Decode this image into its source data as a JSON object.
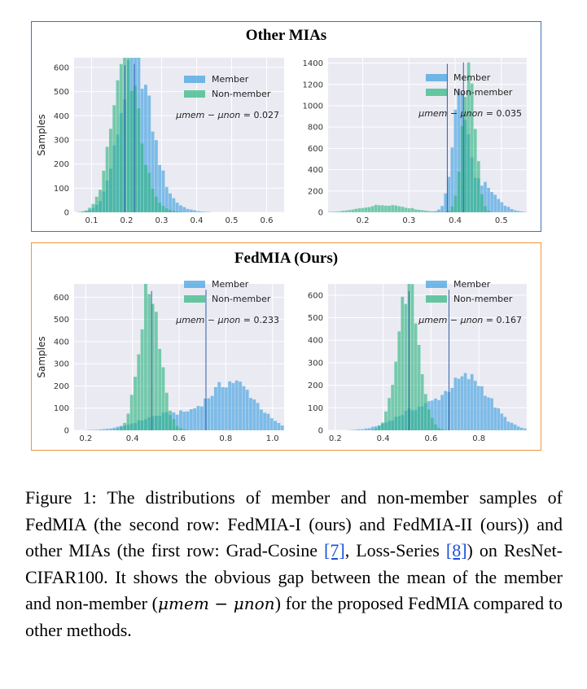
{
  "colors": {
    "member": "#3a9ee0",
    "nonmember": "#2bb57f",
    "mean_line": "#2f5fa8",
    "plot_bg": "#eaeaf2",
    "grid": "#ffffff",
    "top_border": "#3b74c4",
    "bottom_border": "#f0953c"
  },
  "panels": [
    {
      "title": "Other MIAs"
    },
    {
      "title": "FedMIA (Ours)"
    }
  ],
  "chart_data": [
    {
      "type": "bar",
      "ylabel": "Samples",
      "legend": [
        "Member",
        "Non-member"
      ],
      "annotation_prefix": "μmem − μnon",
      "annotation_value": "0.027",
      "xlim": [
        0.05,
        0.65
      ],
      "ylim": [
        0,
        640
      ],
      "xticks": [
        0.1,
        0.2,
        0.3,
        0.4,
        0.5,
        0.6
      ],
      "xtick_labels": [
        "0.1",
        "0.2",
        "0.3",
        "0.4",
        "0.5",
        "0.6"
      ],
      "yticks": [
        0,
        100,
        200,
        300,
        400,
        500,
        600
      ],
      "member": {
        "mean": 0.222,
        "components": [
          {
            "mu": 0.225,
            "sd": 0.045,
            "peak": 620
          },
          {
            "mu": 0.31,
            "sd": 0.05,
            "peak": 30
          }
        ]
      },
      "nonmember": {
        "mean": 0.195,
        "components": [
          {
            "mu": 0.197,
            "sd": 0.038,
            "peak": 625
          },
          {
            "mu": 0.27,
            "sd": 0.04,
            "peak": 20
          }
        ]
      },
      "bins": [
        0.05,
        0.65,
        60
      ]
    },
    {
      "type": "bar",
      "ylabel": "",
      "legend": [
        "Member",
        "Non-member"
      ],
      "annotation_prefix": "μmem − μnon",
      "annotation_value": "0.035",
      "xlim": [
        0.125,
        0.555
      ],
      "ylim": [
        0,
        1450
      ],
      "xticks": [
        0.2,
        0.3,
        0.4,
        0.5
      ],
      "xtick_labels": [
        "0.2",
        "0.3",
        "0.4",
        "0.5"
      ],
      "yticks": [
        0,
        200,
        400,
        600,
        800,
        1000,
        1200,
        1400
      ],
      "member": {
        "mean": 0.418,
        "components": [
          {
            "mu": 0.45,
            "sd": 0.035,
            "peak": 280
          },
          {
            "mu": 0.41,
            "sd": 0.015,
            "peak": 1000
          }
        ]
      },
      "nonmember": {
        "mean": 0.383,
        "components": [
          {
            "mu": 0.43,
            "sd": 0.014,
            "peak": 1400
          },
          {
            "mu": 0.25,
            "sd": 0.05,
            "peak": 70
          }
        ]
      },
      "bins": [
        0.125,
        0.555,
        60
      ]
    },
    {
      "type": "bar",
      "ylabel": "Samples",
      "legend": [
        "Member",
        "Non-member"
      ],
      "annotation_prefix": "μmem − μnon",
      "annotation_value": "0.233",
      "xlim": [
        0.15,
        1.05
      ],
      "ylim": [
        0,
        660
      ],
      "xticks": [
        0.2,
        0.4,
        0.6,
        0.8,
        1.0
      ],
      "xtick_labels": [
        "0.2",
        "0.4",
        "0.6",
        "0.8",
        "1.0"
      ],
      "yticks": [
        0,
        100,
        200,
        300,
        400,
        500,
        600
      ],
      "member": {
        "mean": 0.715,
        "components": [
          {
            "mu": 0.83,
            "sd": 0.1,
            "peak": 215
          },
          {
            "mu": 0.55,
            "sd": 0.12,
            "peak": 70
          }
        ]
      },
      "nonmember": {
        "mean": 0.482,
        "components": [
          {
            "mu": 0.475,
            "sd": 0.045,
            "peak": 640
          }
        ]
      },
      "bins": [
        0.15,
        1.05,
        60
      ]
    },
    {
      "type": "bar",
      "ylabel": "",
      "legend": [
        "Member",
        "Non-member"
      ],
      "annotation_prefix": "μmem − μnon",
      "annotation_value": "0.167",
      "xlim": [
        0.17,
        1.0
      ],
      "ylim": [
        0,
        650
      ],
      "xticks": [
        0.2,
        0.4,
        0.6,
        0.8
      ],
      "xtick_labels": [
        "0.2",
        "0.4",
        "0.6",
        "0.8"
      ],
      "yticks": [
        0,
        100,
        200,
        300,
        400,
        500,
        600
      ],
      "member": {
        "mean": 0.675,
        "components": [
          {
            "mu": 0.76,
            "sd": 0.09,
            "peak": 225
          },
          {
            "mu": 0.55,
            "sd": 0.1,
            "peak": 90
          }
        ]
      },
      "nonmember": {
        "mean": 0.508,
        "components": [
          {
            "mu": 0.505,
            "sd": 0.045,
            "peak": 635
          }
        ]
      },
      "bins": [
        0.17,
        1.0,
        60
      ]
    }
  ],
  "caption": {
    "p1": "Figure 1:  The distributions of member and non-member samples of FedMIA (the second row: FedMIA-I (ours) and FedMIA-II (ours)) and other MIAs (the first row: Grad-Cosine ",
    "ref1": "[7]",
    "p2": ", Loss-Series ",
    "ref2": "[8]",
    "p3": ") on ResNet-CIFAR100.   It shows the obvious gap between the mean of the member and non-member (",
    "math": "μmem − μnon",
    "p4": ") for the proposed FedMIA compared to other methods."
  }
}
